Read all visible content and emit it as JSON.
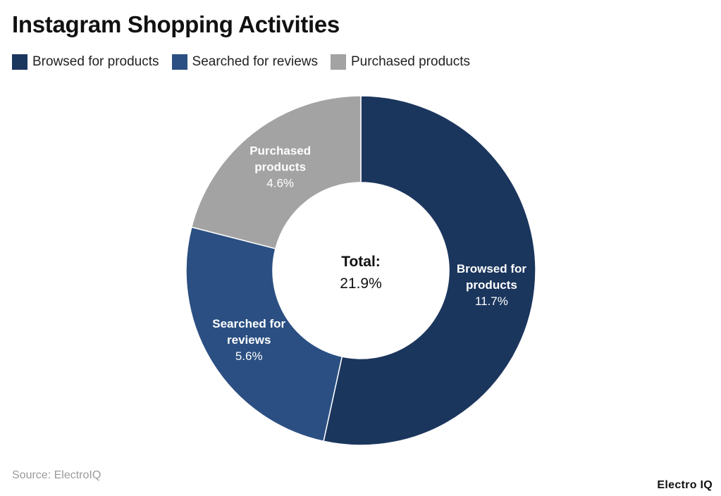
{
  "page": {
    "title": "Instagram Shopping Activities",
    "source": "Source: ElectroIQ",
    "brand": "Electro IQ"
  },
  "chart_data": {
    "type": "pie",
    "donut": true,
    "title": "Instagram Shopping Activities",
    "legend_position": "top-left",
    "center_label": {
      "title": "Total:",
      "value": "21.9%"
    },
    "slices": [
      {
        "name": "Browsed for products",
        "label_lines": [
          "Browsed for",
          "products"
        ],
        "value": 11.7,
        "value_label": "11.7%",
        "color": "#1b365d"
      },
      {
        "name": "Searched for reviews",
        "label_lines": [
          "Searched for",
          "reviews"
        ],
        "value": 5.6,
        "value_label": "5.6%",
        "color": "#2b4f82"
      },
      {
        "name": "Purchased products",
        "label_lines": [
          "Purchased",
          "products"
        ],
        "value": 4.6,
        "value_label": "4.6%",
        "color": "#a3a3a3"
      }
    ]
  }
}
